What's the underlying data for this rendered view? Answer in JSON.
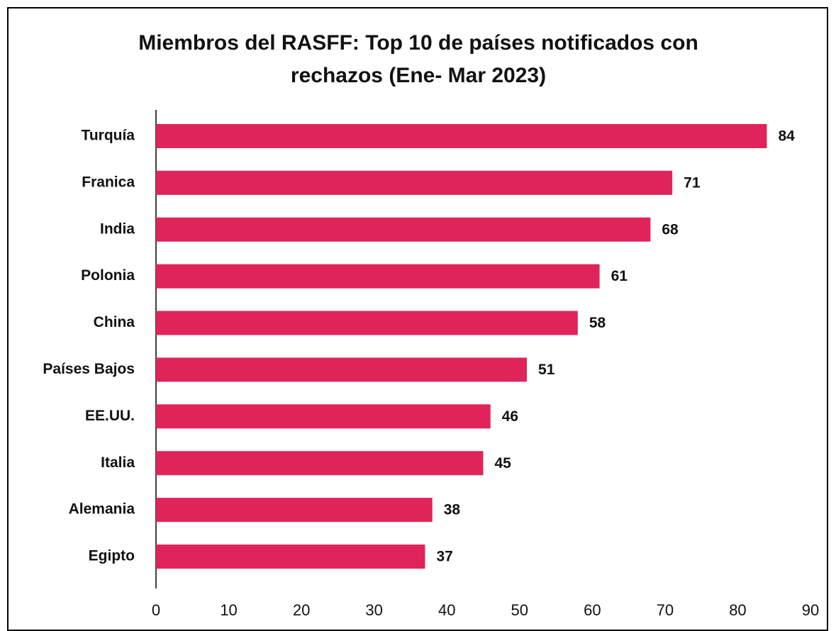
{
  "chart_data": {
    "type": "bar",
    "orientation": "horizontal",
    "title": "Miembros del RASFF: Top 10 de países notificados con rechazos (Ene- Mar 2023)",
    "categories": [
      "Turquía",
      "Franica",
      "India",
      "Polonia",
      "China",
      "Países Bajos",
      "EE.UU.",
      "Italia",
      "Alemania",
      "Egipto"
    ],
    "values": [
      84,
      71,
      68,
      61,
      58,
      51,
      46,
      45,
      38,
      37
    ],
    "color": "#e0245a",
    "xlim": [
      0,
      90
    ],
    "xticks": [
      0,
      10,
      20,
      30,
      40,
      50,
      60,
      70,
      80,
      90
    ],
    "grid": false
  }
}
